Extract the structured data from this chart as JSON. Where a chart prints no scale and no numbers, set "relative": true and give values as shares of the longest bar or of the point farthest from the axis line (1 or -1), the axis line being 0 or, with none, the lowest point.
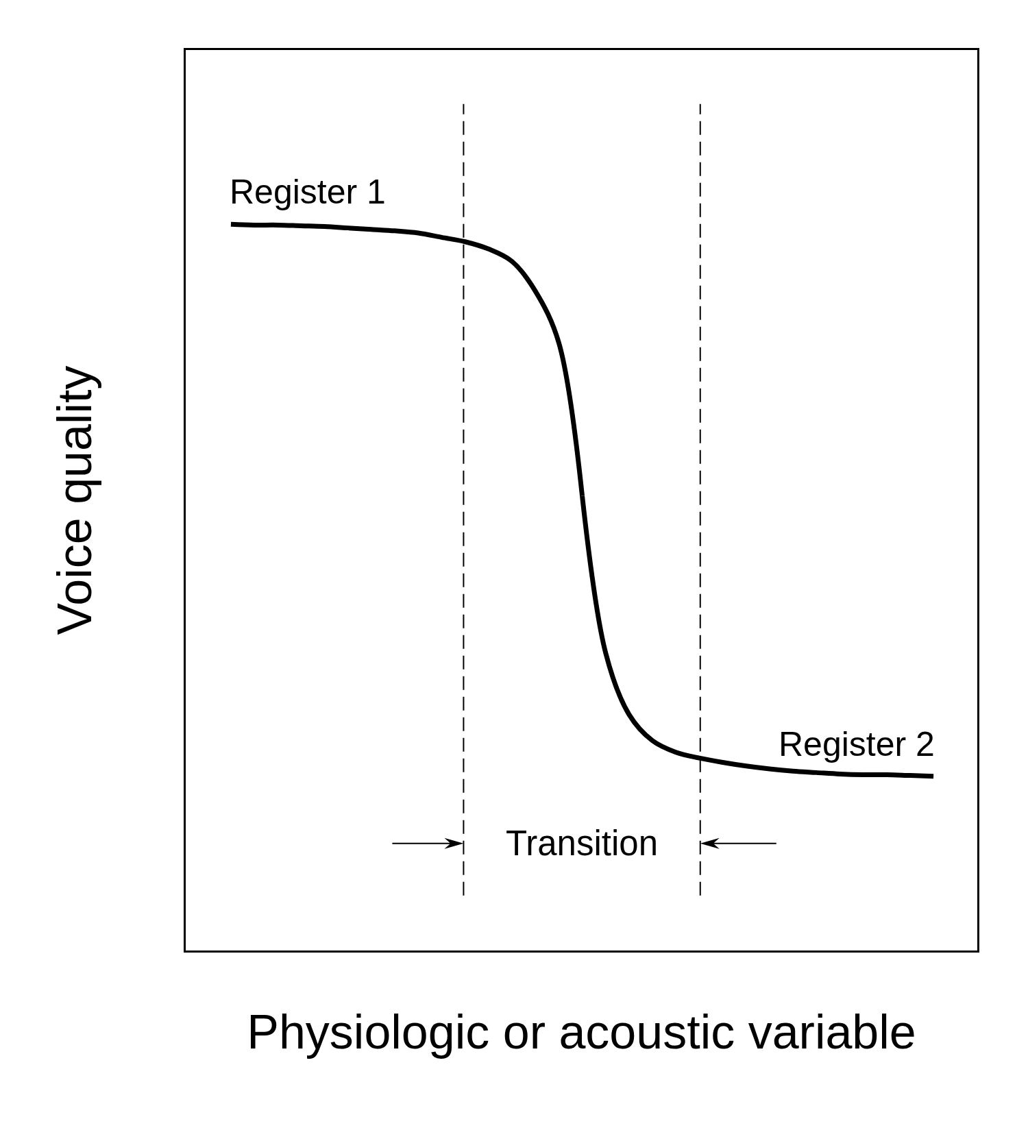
{
  "chart_data": {
    "type": "line",
    "relative": true,
    "xlabel": "Physiologic or acoustic variable",
    "ylabel": "Voice quality",
    "categories": [
      null,
      null,
      null,
      null,
      null,
      null,
      null,
      null,
      null,
      null,
      null,
      null,
      null,
      null,
      null,
      null,
      null,
      null,
      null,
      null,
      null,
      null,
      null,
      null,
      null,
      null,
      null,
      null,
      null,
      null,
      null
    ],
    "series": [
      {
        "name": "Register 1",
        "color": "#000000",
        "values": [
          1,
          0.999,
          0.999,
          0.998,
          0.997,
          0.995,
          0.993,
          0.991,
          0.988,
          0.982,
          0.976,
          0.966,
          0.949,
          0.908,
          0.837,
          0.626,
          null,
          null,
          null,
          null,
          null,
          null,
          null,
          null,
          null,
          null,
          null,
          null,
          null,
          null,
          null
        ]
      },
      {
        "name": "Register 2",
        "color": "#000000",
        "values": [
          null,
          null,
          null,
          null,
          null,
          null,
          null,
          null,
          null,
          null,
          null,
          null,
          null,
          null,
          null,
          0.626,
          0.41,
          0.325,
          0.289,
          0.273,
          0.265,
          0.259,
          0.254,
          0.25,
          0.247,
          0.245,
          0.243,
          0.242,
          0.242,
          0.241,
          0.24
        ]
      }
    ],
    "annotations": [
      "Transition"
    ]
  }
}
